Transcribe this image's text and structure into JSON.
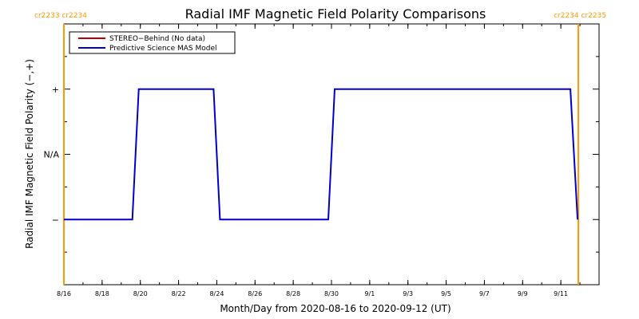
{
  "colors": {
    "background": "#ffffff",
    "axes": "#000000",
    "stereo_behind": "#c00000",
    "mas_model": "#0000cc",
    "boundary": "#ff9900"
  },
  "chart_data": {
    "type": "line",
    "title": "Radial IMF Magnetic Field Polarity Comparisons",
    "xlabel": "Month/Day from 2020-08-16 to 2020-09-12 (UT)",
    "ylabel": "Radial IMF Magnetic Field Polarity (−,+)",
    "x_unit": "date",
    "x_range": [
      "2020-08-16",
      "2020-09-13"
    ],
    "x_ticks": [
      {
        "date": "2020-08-16",
        "label": "8/16"
      },
      {
        "date": "2020-08-18",
        "label": "8/18"
      },
      {
        "date": "2020-08-20",
        "label": "8/20"
      },
      {
        "date": "2020-08-22",
        "label": "8/22"
      },
      {
        "date": "2020-08-24",
        "label": "8/24"
      },
      {
        "date": "2020-08-26",
        "label": "8/26"
      },
      {
        "date": "2020-08-28",
        "label": "8/28"
      },
      {
        "date": "2020-08-30",
        "label": "8/30"
      },
      {
        "date": "2020-09-01",
        "label": "9/1"
      },
      {
        "date": "2020-09-03",
        "label": "9/3"
      },
      {
        "date": "2020-09-05",
        "label": "9/5"
      },
      {
        "date": "2020-09-07",
        "label": "9/7"
      },
      {
        "date": "2020-09-09",
        "label": "9/9"
      },
      {
        "date": "2020-09-11",
        "label": "9/11"
      }
    ],
    "y_range": [
      -2,
      2
    ],
    "y_ticks": [
      {
        "value": 1,
        "label": "+"
      },
      {
        "value": 0,
        "label": "N/A"
      },
      {
        "value": -1,
        "label": "−"
      }
    ],
    "grid": false,
    "legend_position": "top-left",
    "series": [
      {
        "name": "STEREO−Behind (No data)",
        "color": "#c00000",
        "points": []
      },
      {
        "name": "Predictive Science MAS Model",
        "color": "#0000cc",
        "points": [
          {
            "x": "2020-08-16T00:00",
            "y": -1
          },
          {
            "x": "2020-08-19T14:00",
            "y": -1
          },
          {
            "x": "2020-08-19T22:00",
            "y": 1
          },
          {
            "x": "2020-08-23T20:00",
            "y": 1
          },
          {
            "x": "2020-08-24T04:00",
            "y": -1
          },
          {
            "x": "2020-08-29T20:00",
            "y": -1
          },
          {
            "x": "2020-08-30T04:00",
            "y": 1
          },
          {
            "x": "2020-09-11T12:00",
            "y": 1
          },
          {
            "x": "2020-09-11T21:00",
            "y": -1
          }
        ]
      }
    ],
    "boundaries": [
      {
        "x": "2020-08-16T00:00",
        "label": "cr2233 cr2234",
        "side": "left"
      },
      {
        "x": "2020-09-11T22:00",
        "label": "cr2234 cr2235",
        "side": "right"
      }
    ]
  }
}
